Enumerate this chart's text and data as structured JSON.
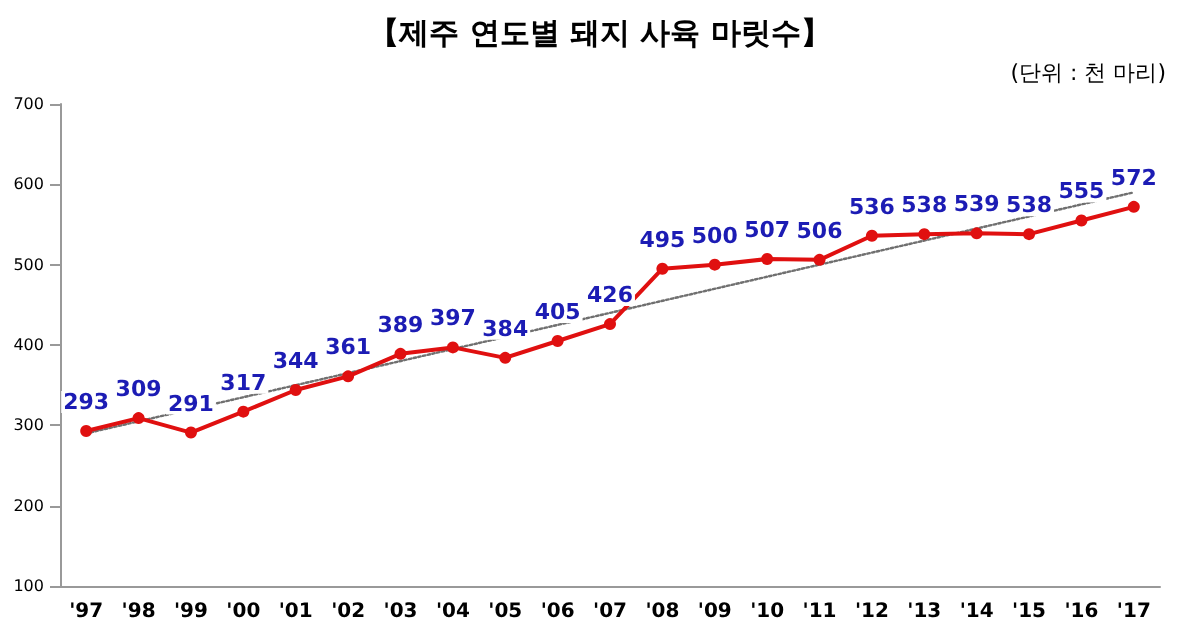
{
  "chart_data": {
    "type": "line",
    "title": "【제주 연도별 돼지 사육 마릿수】",
    "subtitle": "(단위 : 천 마리)",
    "categories": [
      "'97",
      "'98",
      "'99",
      "'00",
      "'01",
      "'02",
      "'03",
      "'04",
      "'05",
      "'06",
      "'07",
      "'08",
      "'09",
      "'10",
      "'11",
      "'12",
      "'13",
      "'14",
      "'15",
      "'16",
      "'17"
    ],
    "series": [
      {
        "color": "#e01010",
        "marker": "circle",
        "line_style": "solid",
        "values": [
          293,
          309,
          291,
          317,
          344,
          361,
          389,
          397,
          384,
          405,
          426,
          495,
          500,
          507,
          506,
          536,
          538,
          539,
          538,
          555,
          572
        ],
        "value_labels": [
          "293",
          "309",
          "291",
          "317",
          "344",
          "361",
          "389",
          "397",
          "384",
          "405",
          "426",
          "495",
          "500",
          "507",
          "506",
          "536",
          "538",
          "539",
          "538",
          "555",
          "572"
        ]
      },
      {
        "type": "line",
        "color": "#707070",
        "marker": "none",
        "line_style": "dotted",
        "x": [
          "'97",
          "'17"
        ],
        "values": [
          290,
          590
        ]
      }
    ],
    "ylim": [
      100,
      700
    ],
    "yticks": [
      100,
      200,
      300,
      400,
      500,
      600,
      700
    ],
    "grid": false
  }
}
